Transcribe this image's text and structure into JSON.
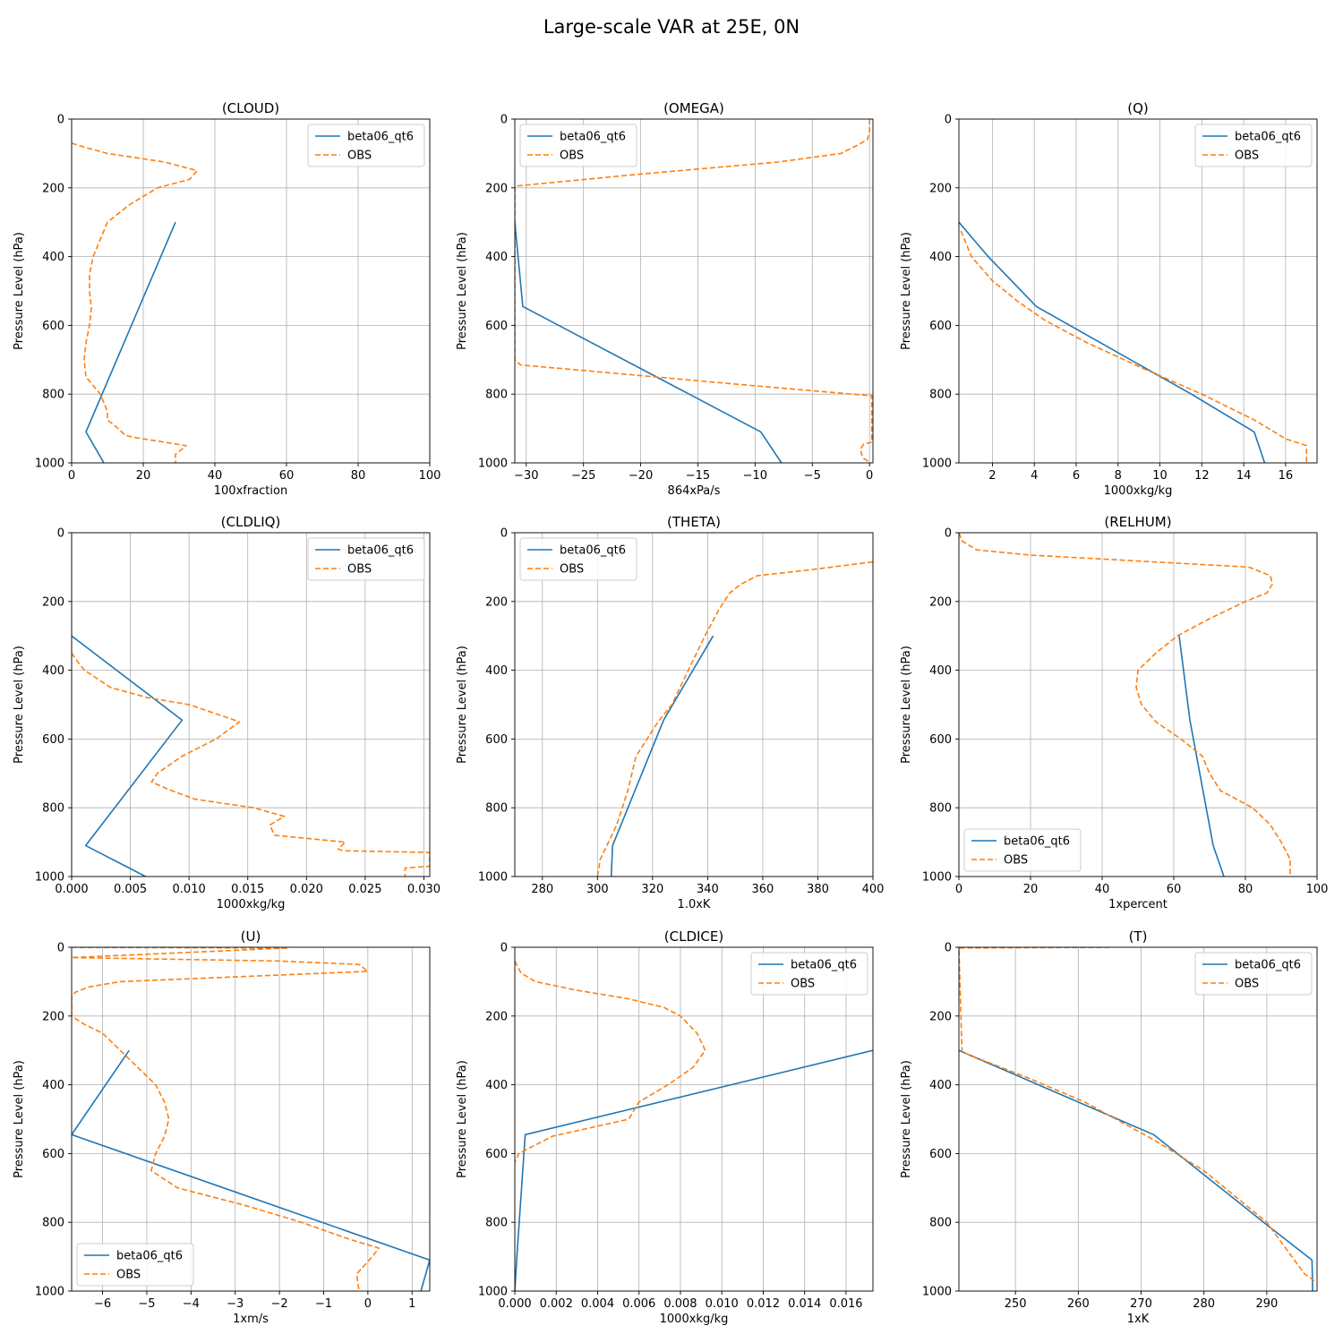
{
  "figure_title": "Large-scale VAR at 25E, 0N",
  "colors": {
    "model": "#1f77b4",
    "obs": "#ff7f0e",
    "grid": "#b0b0b0"
  },
  "chart_data": [
    {
      "type": "line",
      "title": "(CLOUD)",
      "xlabel": "100xfraction",
      "ylabel": "Pressure Level (hPa)",
      "xlim": [
        0,
        100
      ],
      "ylim": [
        1000,
        0
      ],
      "xticks": [
        0,
        20,
        40,
        60,
        80,
        100
      ],
      "xtick_labels": [
        "0",
        "20",
        "40",
        "60",
        "80",
        "100"
      ],
      "yticks": [
        0,
        200,
        400,
        600,
        800,
        1000
      ],
      "ytick_labels": [
        "0",
        "200",
        "400",
        "600",
        "800",
        "1000"
      ],
      "legend": {
        "loc": "top-right",
        "entries": [
          "beta06_qt6",
          "OBS"
        ]
      },
      "series": [
        {
          "name": "beta06_qt6",
          "style": "solid",
          "x": [
            29,
            4,
            9
          ],
          "y": [
            300,
            910,
            1000
          ]
        },
        {
          "name": "OBS",
          "style": "dashed",
          "x": [
            0,
            3,
            10,
            26,
            35,
            33,
            24,
            16,
            10,
            8,
            6,
            5,
            5,
            5.5,
            5,
            4,
            3.5,
            4,
            8,
            10,
            10,
            13,
            15,
            17,
            32,
            29,
            29
          ],
          "y": [
            70,
            80,
            100,
            125,
            150,
            175,
            200,
            250,
            300,
            350,
            400,
            450,
            500,
            550,
            600,
            650,
            700,
            750,
            800,
            850,
            875,
            900,
            920,
            925,
            950,
            975,
            1000
          ]
        }
      ]
    },
    {
      "type": "line",
      "title": "(OMEGA)",
      "xlabel": "864xPa/s",
      "ylabel": "Pressure Level (hPa)",
      "xlim": [
        -31,
        0.3
      ],
      "ylim": [
        1000,
        0
      ],
      "xticks": [
        -30,
        -25,
        -20,
        -15,
        -10,
        -5,
        0
      ],
      "xtick_labels": [
        "−30",
        "−25",
        "−20",
        "−15",
        "−10",
        "−5",
        "0"
      ],
      "yticks": [
        0,
        200,
        400,
        600,
        800,
        1000
      ],
      "ytick_labels": [
        "0",
        "200",
        "400",
        "600",
        "800",
        "1000"
      ],
      "legend": {
        "loc": "top-left",
        "entries": [
          "beta06_qt6",
          "OBS"
        ]
      },
      "series": [
        {
          "name": "beta06_qt6",
          "style": "solid",
          "x": [
            -31,
            -30.3,
            -9.5,
            -7.7
          ],
          "y": [
            300,
            545,
            910,
            1000
          ]
        },
        {
          "name": "OBS",
          "style": "dashed",
          "x": [
            0,
            0,
            -0.2,
            -1,
            -2.5,
            -8,
            -20,
            -31,
            -31,
            -30.5,
            -22,
            -12,
            0.2,
            0.2,
            -0.5,
            -0.8,
            -0.6,
            0.1
          ],
          "y": [
            0,
            40,
            60,
            75,
            100,
            125,
            160,
            195,
            700,
            715,
            740,
            770,
            805,
            940,
            945,
            960,
            985,
            1000
          ]
        }
      ]
    },
    {
      "type": "line",
      "title": "(Q)",
      "xlabel": "1000xkg/kg",
      "ylabel": "Pressure Level (hPa)",
      "xlim": [
        0.4,
        17.5
      ],
      "ylim": [
        1000,
        0
      ],
      "xticks": [
        2,
        4,
        6,
        8,
        10,
        12,
        14,
        16
      ],
      "xtick_labels": [
        "2",
        "4",
        "6",
        "8",
        "10",
        "12",
        "14",
        "16"
      ],
      "yticks": [
        0,
        200,
        400,
        600,
        800,
        1000
      ],
      "ytick_labels": [
        "0",
        "200",
        "400",
        "600",
        "800",
        "1000"
      ],
      "legend": {
        "loc": "top-right",
        "entries": [
          "beta06_qt6",
          "OBS"
        ]
      },
      "series": [
        {
          "name": "beta06_qt6",
          "style": "solid",
          "x": [
            0.4,
            1.8,
            4.1,
            11.5,
            14.5,
            15
          ],
          "y": [
            300,
            400,
            545,
            800,
            910,
            1000
          ]
        },
        {
          "name": "OBS",
          "style": "dashed",
          "x": [
            0.5,
            1,
            2,
            3.2,
            4.5,
            6.5,
            9,
            12,
            14.5,
            16,
            17,
            17
          ],
          "y": [
            325,
            400,
            470,
            530,
            585,
            650,
            720,
            800,
            875,
            930,
            950,
            1000
          ]
        }
      ]
    },
    {
      "type": "line",
      "title": "(CLDLIQ)",
      "xlabel": "1000xkg/kg",
      "ylabel": "Pressure Level (hPa)",
      "xlim": [
        0,
        0.0305
      ],
      "ylim": [
        1000,
        0
      ],
      "xticks": [
        0,
        0.005,
        0.01,
        0.015,
        0.02,
        0.025,
        0.03
      ],
      "xtick_labels": [
        "0.000",
        "0.005",
        "0.010",
        "0.015",
        "0.020",
        "0.025",
        "0.030"
      ],
      "yticks": [
        0,
        200,
        400,
        600,
        800,
        1000
      ],
      "ytick_labels": [
        "0",
        "200",
        "400",
        "600",
        "800",
        "1000"
      ],
      "legend": {
        "loc": "top-right",
        "entries": [
          "beta06_qt6",
          "OBS"
        ]
      },
      "series": [
        {
          "name": "beta06_qt6",
          "style": "solid",
          "x": [
            0,
            0.0094,
            0.0012,
            0.0063
          ],
          "y": [
            300,
            545,
            910,
            1000
          ]
        },
        {
          "name": "OBS",
          "style": "dashed",
          "x": [
            0,
            0.0005,
            0.0011,
            0.0033,
            0.0065,
            0.01,
            0.0143,
            0.0123,
            0.0094,
            0.0073,
            0.0068,
            0.0085,
            0.0105,
            0.0155,
            0.0181,
            0.0169,
            0.0172,
            0.0173,
            0.0233,
            0.0227,
            0.0231,
            0.0305,
            0.0305,
            0.0284,
            0.0284
          ],
          "y": [
            350,
            375,
            400,
            450,
            480,
            500,
            550,
            600,
            650,
            700,
            725,
            750,
            775,
            800,
            825,
            850,
            875,
            880,
            900,
            920,
            925,
            930,
            970,
            975,
            1000
          ]
        }
      ]
    },
    {
      "type": "line",
      "title": "(THETA)",
      "xlabel": "1.0xK",
      "ylabel": "Pressure Level (hPa)",
      "xlim": [
        270,
        400
      ],
      "ylim": [
        1000,
        0
      ],
      "xticks": [
        280,
        300,
        320,
        340,
        360,
        380,
        400
      ],
      "xtick_labels": [
        "280",
        "300",
        "320",
        "340",
        "360",
        "380",
        "400"
      ],
      "yticks": [
        0,
        200,
        400,
        600,
        800,
        1000
      ],
      "ytick_labels": [
        "0",
        "200",
        "400",
        "600",
        "800",
        "1000"
      ],
      "legend": {
        "loc": "top-left",
        "entries": [
          "beta06_qt6",
          "OBS"
        ]
      },
      "series": [
        {
          "name": "beta06_qt6",
          "style": "solid",
          "x": [
            342,
            324,
            305.5,
            305
          ],
          "y": [
            300,
            545,
            910,
            1000
          ]
        },
        {
          "name": "OBS",
          "style": "dashed",
          "x": [
            400,
            385,
            375,
            358,
            352,
            348,
            344,
            339,
            333,
            327,
            322,
            318,
            314,
            311,
            307,
            304,
            301,
            300
          ],
          "y": [
            85,
            100,
            110,
            125,
            150,
            175,
            225,
            300,
            400,
            500,
            550,
            600,
            650,
            750,
            850,
            900,
            950,
            1000
          ]
        }
      ]
    },
    {
      "type": "line",
      "title": "(RELHUM)",
      "xlabel": "1xpercent",
      "ylabel": "Pressure Level (hPa)",
      "xlim": [
        0,
        100
      ],
      "ylim": [
        1000,
        0
      ],
      "xticks": [
        0,
        20,
        40,
        60,
        80,
        100
      ],
      "xtick_labels": [
        "0",
        "20",
        "40",
        "60",
        "80",
        "100"
      ],
      "yticks": [
        0,
        200,
        400,
        600,
        800,
        1000
      ],
      "ytick_labels": [
        "0",
        "200",
        "400",
        "600",
        "800",
        "1000"
      ],
      "legend": {
        "loc": "bottom-left",
        "entries": [
          "beta06_qt6",
          "OBS"
        ]
      },
      "series": [
        {
          "name": "beta06_qt6",
          "style": "solid",
          "x": [
            61.5,
            64.5,
            71,
            74
          ],
          "y": [
            300,
            545,
            910,
            1000
          ]
        },
        {
          "name": "OBS",
          "style": "dashed",
          "x": [
            0,
            1,
            5,
            20,
            81,
            87,
            87.5,
            86,
            80,
            70,
            61,
            55,
            50,
            49.5,
            51,
            55,
            62,
            68,
            70,
            73,
            82,
            87,
            90,
            92.5,
            92.5
          ],
          "y": [
            0,
            25,
            50,
            65,
            100,
            125,
            150,
            175,
            200,
            250,
            300,
            350,
            400,
            450,
            500,
            550,
            600,
            650,
            700,
            750,
            800,
            850,
            900,
            950,
            1000
          ]
        }
      ]
    },
    {
      "type": "line",
      "title": "(U)",
      "xlabel": "1xm/s",
      "ylabel": "Pressure Level (hPa)",
      "xlim": [
        -6.7,
        1.4
      ],
      "ylim": [
        1000,
        0
      ],
      "xticks": [
        -6,
        -5,
        -4,
        -3,
        -2,
        -1,
        0,
        1
      ],
      "xtick_labels": [
        "−6",
        "−5",
        "−4",
        "−3",
        "−2",
        "−1",
        "0",
        "1"
      ],
      "yticks": [
        0,
        200,
        400,
        600,
        800,
        1000
      ],
      "ytick_labels": [
        "0",
        "200",
        "400",
        "600",
        "800",
        "1000"
      ],
      "legend": {
        "loc": "bottom-left",
        "entries": [
          "beta06_qt6",
          "OBS"
        ]
      },
      "series": [
        {
          "name": "beta06_qt6",
          "style": "solid",
          "x": [
            -5.4,
            -6.7,
            1.4,
            1.2
          ],
          "y": [
            300,
            545,
            910,
            1000
          ]
        },
        {
          "name": "OBS",
          "style": "dashed",
          "x": [
            -6.7,
            -1.8,
            -6.7,
            -2,
            -0.2,
            0,
            -5.6,
            -6.3,
            -6.6,
            -6.7,
            -6.7,
            -6.4,
            -6,
            -5.6,
            -5.2,
            -4.8,
            -4.6,
            -4.5,
            -4.6,
            -4.8,
            -4.9,
            -4.3,
            -2.8,
            -1.5,
            -0.4,
            0.25,
            0.1,
            -0.25,
            -0.2
          ],
          "y": [
            0,
            2,
            30,
            40,
            50,
            70,
            100,
            115,
            130,
            140,
            200,
            225,
            250,
            300,
            350,
            400,
            450,
            500,
            550,
            600,
            650,
            700,
            750,
            800,
            850,
            875,
            900,
            950,
            1000
          ]
        }
      ]
    },
    {
      "type": "line",
      "title": "(CLDICE)",
      "xlabel": "1000xkg/kg",
      "ylabel": "Pressure Level (hPa)",
      "xlim": [
        0,
        0.0173
      ],
      "ylim": [
        1000,
        0
      ],
      "xticks": [
        0,
        0.002,
        0.004,
        0.006,
        0.008,
        0.01,
        0.012,
        0.014,
        0.016
      ],
      "xtick_labels": [
        "0.000",
        "0.002",
        "0.004",
        "0.006",
        "0.008",
        "0.010",
        "0.012",
        "0.014",
        "0.016"
      ],
      "yticks": [
        0,
        200,
        400,
        600,
        800,
        1000
      ],
      "ytick_labels": [
        "0",
        "200",
        "400",
        "600",
        "800",
        "1000"
      ],
      "legend": {
        "loc": "top-right",
        "entries": [
          "beta06_qt6",
          "OBS"
        ]
      },
      "series": [
        {
          "name": "beta06_qt6",
          "style": "solid",
          "x": [
            0.0173,
            0.0005,
            0.0001,
            0
          ],
          "y": [
            300,
            545,
            900,
            1000
          ]
        },
        {
          "name": "OBS",
          "style": "dashed",
          "x": [
            0,
            0.0003,
            0.001,
            0.003,
            0.0055,
            0.0072,
            0.008,
            0.0088,
            0.0092,
            0.0086,
            0.0074,
            0.006,
            0.0055,
            0.0018,
            0.0002,
            0
          ],
          "y": [
            40,
            75,
            100,
            125,
            150,
            175,
            200,
            250,
            300,
            350,
            400,
            450,
            500,
            550,
            600,
            625
          ]
        }
      ]
    },
    {
      "type": "line",
      "title": "(T)",
      "xlabel": "1xK",
      "ylabel": "Pressure Level (hPa)",
      "xlim": [
        241,
        298
      ],
      "ylim": [
        1000,
        0
      ],
      "xticks": [
        250,
        260,
        270,
        280,
        290
      ],
      "xtick_labels": [
        "250",
        "260",
        "270",
        "280",
        "290"
      ],
      "yticks": [
        0,
        200,
        400,
        600,
        800,
        1000
      ],
      "ytick_labels": [
        "0",
        "200",
        "400",
        "600",
        "800",
        "1000"
      ],
      "legend": {
        "loc": "top-right",
        "entries": [
          "beta06_qt6",
          "OBS"
        ]
      },
      "series": [
        {
          "name": "beta06_qt6",
          "style": "solid",
          "x": [
            241,
            272,
            289.5,
            297.2,
            297.3
          ],
          "y": [
            300,
            545,
            800,
            910,
            1000
          ]
        },
        {
          "name": "OBS",
          "style": "dashed",
          "x": [
            265,
            241,
            241.5,
            252,
            261,
            268,
            272,
            280,
            290,
            294,
            296,
            298
          ],
          "y": [
            0,
            2,
            305,
            380,
            450,
            520,
            560,
            650,
            800,
            900,
            950,
            975
          ]
        }
      ]
    }
  ]
}
